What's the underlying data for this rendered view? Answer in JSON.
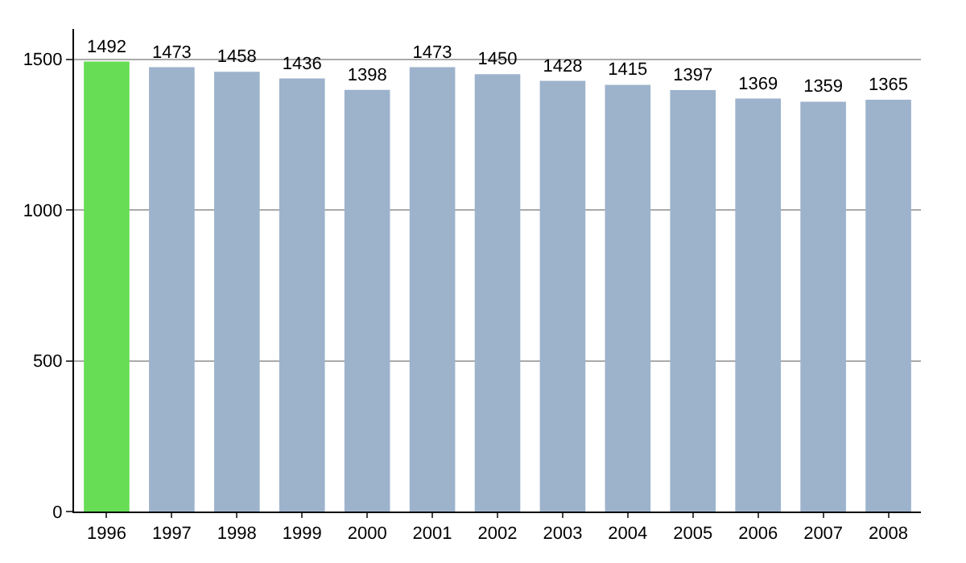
{
  "chart_data": {
    "type": "bar",
    "categories": [
      "1996",
      "1997",
      "1998",
      "1999",
      "2000",
      "2001",
      "2002",
      "2003",
      "2004",
      "2005",
      "2006",
      "2007",
      "2008"
    ],
    "values": [
      1492,
      1473,
      1458,
      1436,
      1398,
      1473,
      1450,
      1428,
      1415,
      1397,
      1369,
      1359,
      1365
    ],
    "colors": [
      "#66dd55",
      "#9db3cc",
      "#9db3cc",
      "#9db3cc",
      "#9db3cc",
      "#9db3cc",
      "#9db3cc",
      "#9db3cc",
      "#9db3cc",
      "#9db3cc",
      "#9db3cc",
      "#9db3cc",
      "#9db3cc"
    ],
    "ylim": [
      0,
      1600
    ],
    "yticks": [
      0,
      500,
      1000,
      1500
    ],
    "grid": "y",
    "data_labels": true
  }
}
